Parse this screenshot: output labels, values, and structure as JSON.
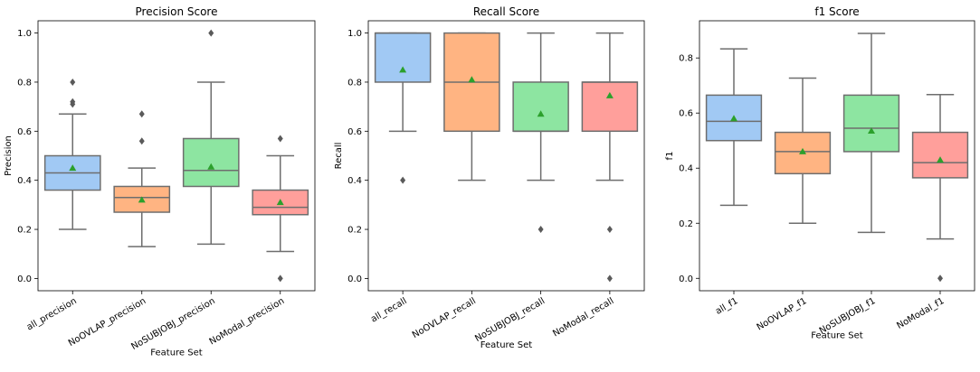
{
  "chart_data": [
    {
      "type": "box",
      "title": "Precision Score",
      "xlabel": "Feature Set",
      "ylabel": "Precision",
      "ylim": [
        -0.05,
        1.05
      ],
      "yticks": [
        "0.0",
        "0.2",
        "0.4",
        "0.6",
        "0.8",
        "1.0"
      ],
      "categories": [
        "all_precision",
        "NoOVLAP_precision",
        "NoSUBJOBJ_precision",
        "NoModal_precision"
      ],
      "boxes": [
        {
          "category": "all_precision",
          "whisker_low": 0.2,
          "q1": 0.36,
          "median": 0.43,
          "q3": 0.5,
          "whisker_high": 0.67,
          "mean": 0.45,
          "outliers": [
            0.71,
            0.72,
            0.8
          ],
          "color": "#a1c9f4"
        },
        {
          "category": "NoOVLAP_precision",
          "whisker_low": 0.13,
          "q1": 0.27,
          "median": 0.33,
          "q3": 0.375,
          "whisker_high": 0.45,
          "mean": 0.32,
          "outliers": [
            0.56,
            0.67
          ],
          "color": "#ffb482"
        },
        {
          "category": "NoSUBJOBJ_precision",
          "whisker_low": 0.14,
          "q1": 0.375,
          "median": 0.44,
          "q3": 0.57,
          "whisker_high": 0.8,
          "mean": 0.455,
          "outliers": [
            1.0
          ],
          "color": "#8de5a1"
        },
        {
          "category": "NoModal_precision",
          "whisker_low": 0.11,
          "q1": 0.26,
          "median": 0.29,
          "q3": 0.36,
          "whisker_high": 0.5,
          "mean": 0.31,
          "outliers": [
            0.0,
            0.57
          ],
          "color": "#ff9f9b"
        }
      ]
    },
    {
      "type": "box",
      "title": "Recall Score",
      "xlabel": "Feature Set",
      "ylabel": "Recall",
      "ylim": [
        -0.05,
        1.05
      ],
      "yticks": [
        "0.0",
        "0.2",
        "0.4",
        "0.6",
        "0.8",
        "1.0"
      ],
      "categories": [
        "all_recall",
        "NoOVLAP_recall",
        "NoSUBJOBJ_recall",
        "NoModal_recall"
      ],
      "boxes": [
        {
          "category": "all_recall",
          "whisker_low": 0.6,
          "q1": 0.8,
          "median": 1.0,
          "q3": 1.0,
          "whisker_high": 1.0,
          "mean": 0.85,
          "outliers": [
            0.4
          ],
          "color": "#a1c9f4"
        },
        {
          "category": "NoOVLAP_recall",
          "whisker_low": 0.4,
          "q1": 0.6,
          "median": 0.8,
          "q3": 1.0,
          "whisker_high": 1.0,
          "mean": 0.81,
          "outliers": [],
          "color": "#ffb482"
        },
        {
          "category": "NoSUBJOBJ_recall",
          "whisker_low": 0.4,
          "q1": 0.6,
          "median": 0.6,
          "q3": 0.8,
          "whisker_high": 1.0,
          "mean": 0.67,
          "outliers": [
            0.2
          ],
          "color": "#8de5a1"
        },
        {
          "category": "NoModal_recall",
          "whisker_low": 0.4,
          "q1": 0.6,
          "median": 0.8,
          "q3": 0.8,
          "whisker_high": 1.0,
          "mean": 0.745,
          "outliers": [
            0.0,
            0.2
          ],
          "color": "#ff9f9b"
        }
      ]
    },
    {
      "type": "box",
      "title": "f1 Score",
      "xlabel": "Feature Set",
      "ylabel": "f1",
      "ylim": [
        -0.045,
        0.935
      ],
      "yticks": [
        "0.0",
        "0.2",
        "0.4",
        "0.6",
        "0.8"
      ],
      "categories": [
        "all_f1",
        "NoOVLAP_f1",
        "NoSUBJOBJ_f1",
        "NoModal_f1"
      ],
      "boxes": [
        {
          "category": "all_f1",
          "whisker_low": 0.265,
          "q1": 0.5,
          "median": 0.57,
          "q3": 0.665,
          "whisker_high": 0.833,
          "mean": 0.58,
          "outliers": [],
          "color": "#a1c9f4"
        },
        {
          "category": "NoOVLAP_f1",
          "whisker_low": 0.2,
          "q1": 0.38,
          "median": 0.46,
          "q3": 0.53,
          "whisker_high": 0.727,
          "mean": 0.46,
          "outliers": [],
          "color": "#ffb482"
        },
        {
          "category": "NoSUBJOBJ_f1",
          "whisker_low": 0.167,
          "q1": 0.46,
          "median": 0.545,
          "q3": 0.665,
          "whisker_high": 0.889,
          "mean": 0.535,
          "outliers": [],
          "color": "#8de5a1"
        },
        {
          "category": "NoModal_f1",
          "whisker_low": 0.143,
          "q1": 0.365,
          "median": 0.42,
          "q3": 0.53,
          "whisker_high": 0.667,
          "mean": 0.43,
          "outliers": [
            0.0
          ],
          "color": "#ff9f9b"
        }
      ]
    }
  ]
}
